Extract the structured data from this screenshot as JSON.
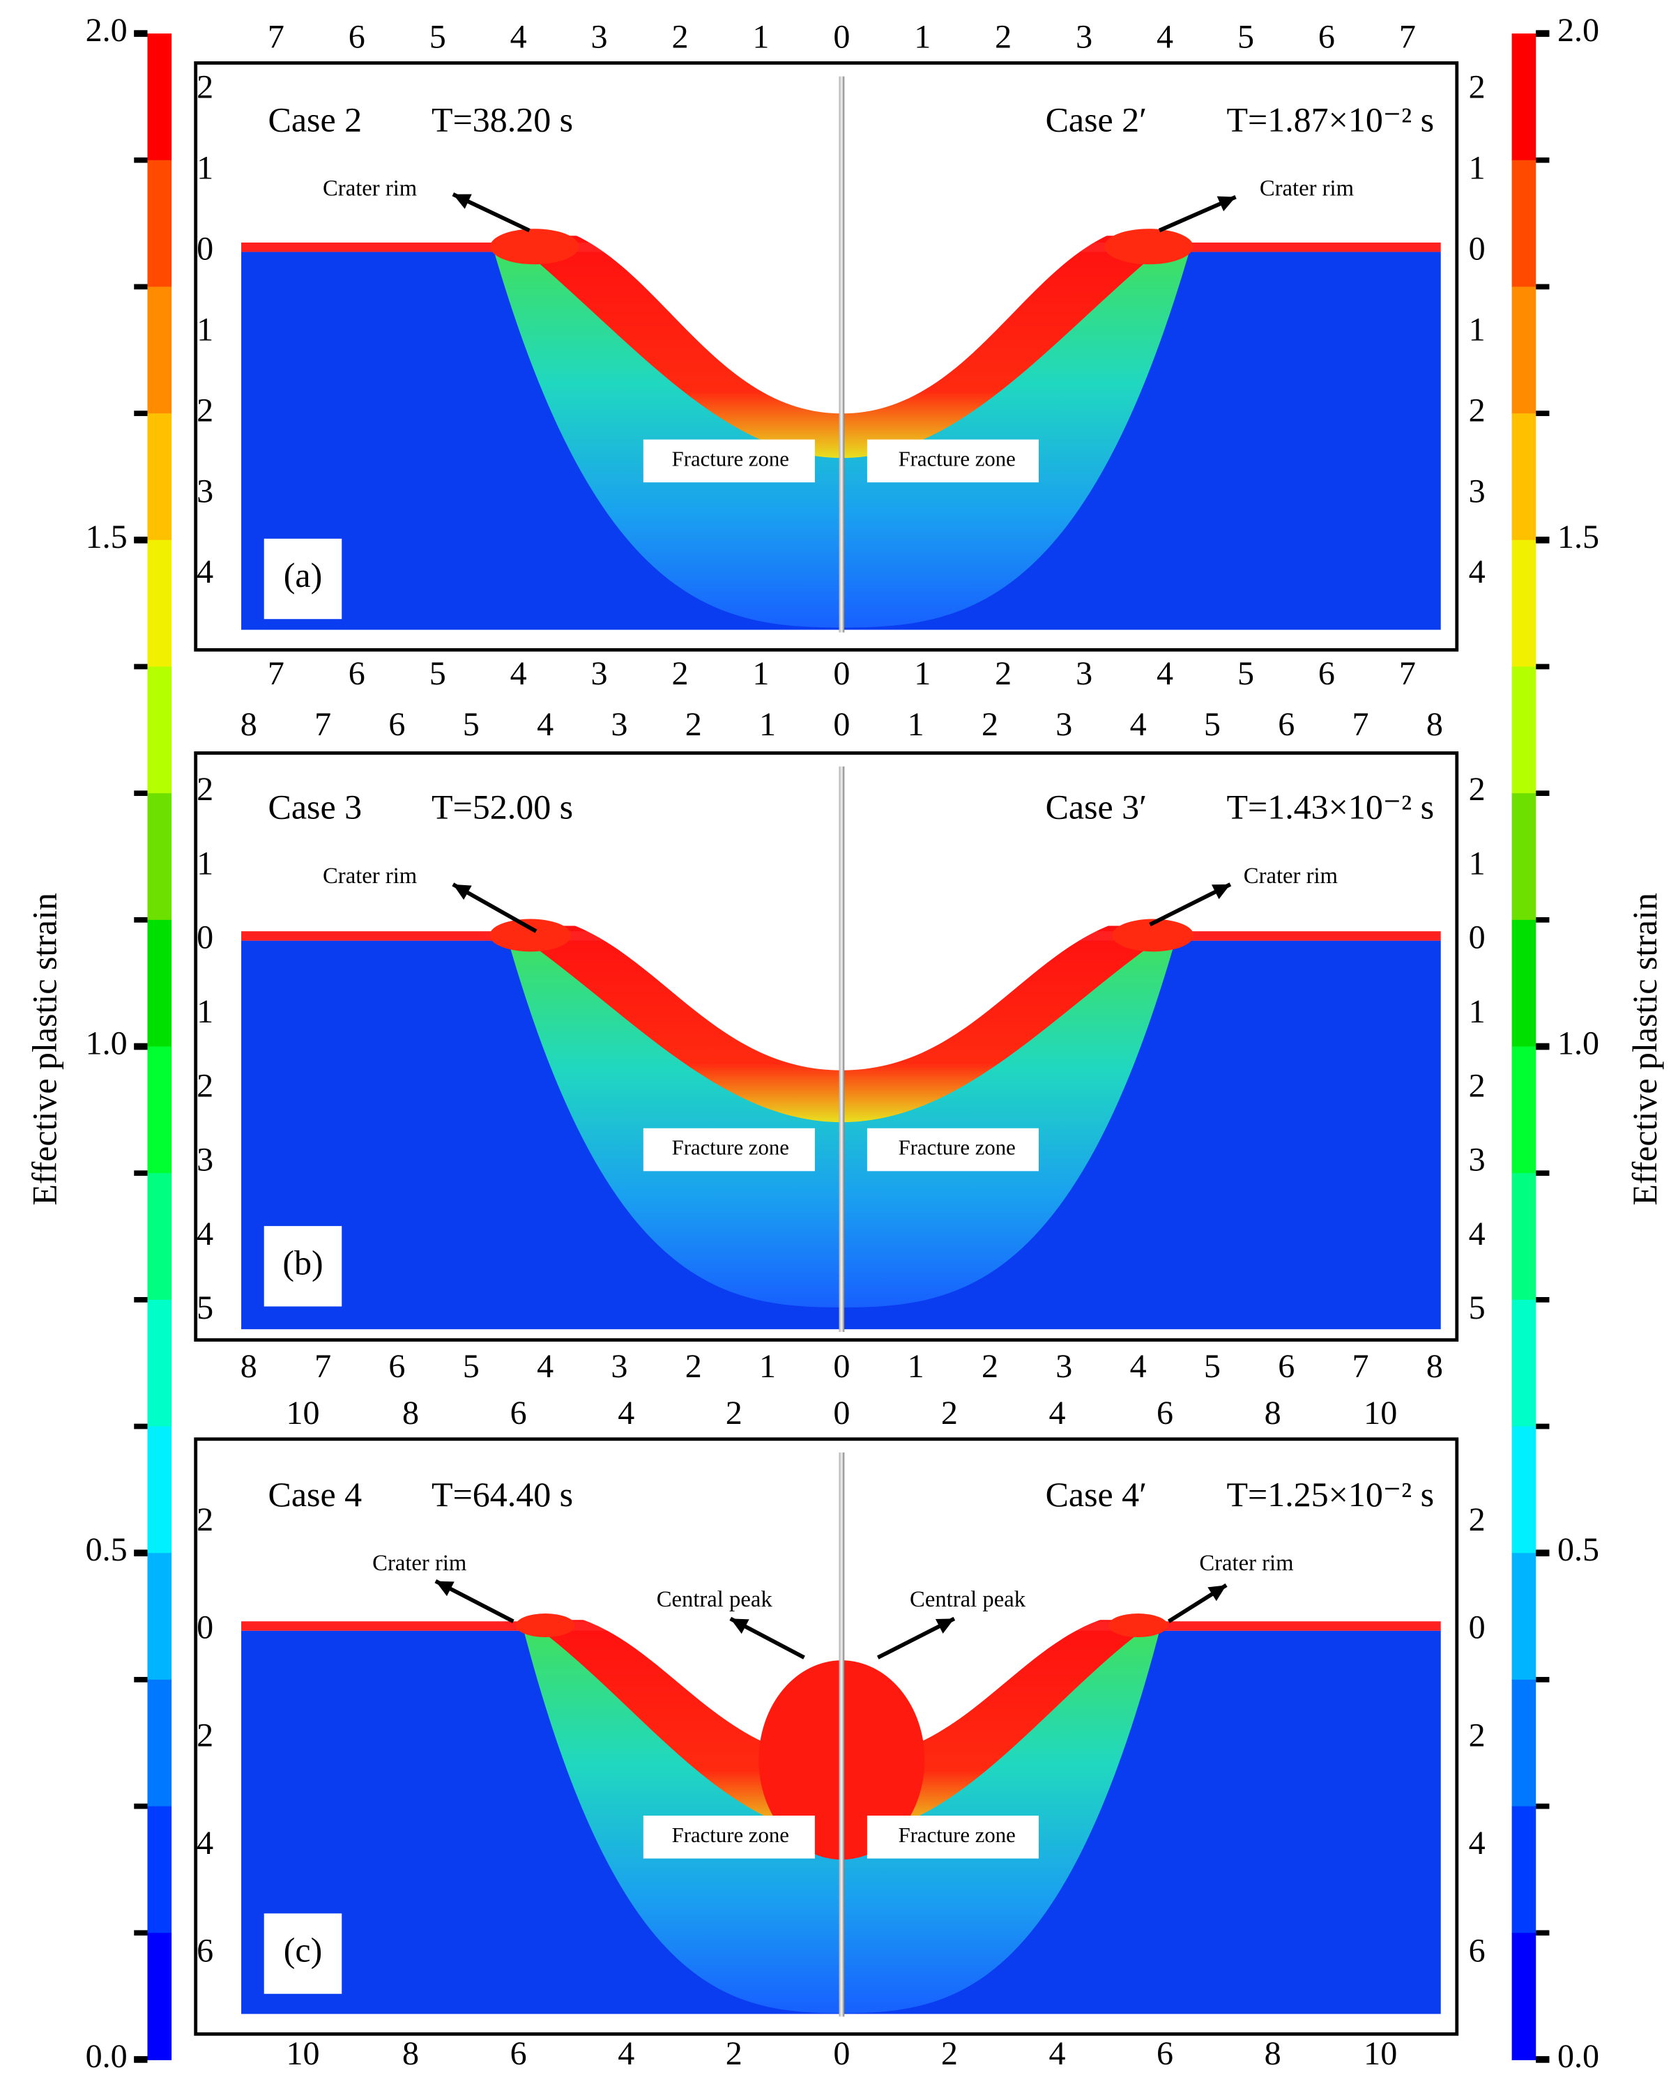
{
  "colorbar": {
    "label": "Effective plastic strain",
    "range": [
      0,
      2
    ],
    "ticks": [
      {
        "value": 2,
        "label": "2.0"
      },
      {
        "value": 1.5,
        "label": "1.5"
      },
      {
        "value": 1,
        "label": "1.0"
      },
      {
        "value": 0.5,
        "label": "0.5"
      },
      {
        "value": 0,
        "label": "0.0"
      }
    ],
    "colors": [
      "#ff0000",
      "#ff4a00",
      "#ff8c00",
      "#ffc000",
      "#f0f000",
      "#b4ff00",
      "#6ee000",
      "#00e000",
      "#00ff30",
      "#00ff80",
      "#00ffc8",
      "#00f0ff",
      "#00b4ff",
      "#0078ff",
      "#003cff",
      "#0000ff"
    ]
  },
  "panels": [
    {
      "tag": "(a)",
      "left_case": "Case 2",
      "left_time": "T=38.20 s",
      "right_case": "Case 2′",
      "right_time": "T=1.87×10⁻² s",
      "rim_label": "Crater rim",
      "zone_label": "Fracture zone",
      "xticks": [
        {
          "value": -7,
          "label": "7"
        },
        {
          "value": -6,
          "label": "6"
        },
        {
          "value": -5,
          "label": "5"
        },
        {
          "value": -4,
          "label": "4"
        },
        {
          "value": -3,
          "label": "3"
        },
        {
          "value": -2,
          "label": "2"
        },
        {
          "value": -1,
          "label": "1"
        },
        0,
        1,
        2,
        3,
        4,
        5,
        6,
        7
      ],
      "yticks": [
        2,
        1,
        0,
        {
          "value": -1,
          "label": "1"
        },
        {
          "value": -2,
          "label": "2"
        },
        {
          "value": -3,
          "label": "3"
        },
        {
          "value": -4,
          "label": "4"
        }
      ]
    },
    {
      "tag": "(b)",
      "left_case": "Case 3",
      "left_time": "T=52.00 s",
      "right_case": "Case 3′",
      "right_time": "T=1.43×10⁻² s",
      "rim_label": "Crater rim",
      "zone_label": "Fracture zone",
      "xticks": [
        {
          "value": -8,
          "label": "8"
        },
        {
          "value": -7,
          "label": "7"
        },
        {
          "value": -6,
          "label": "6"
        },
        {
          "value": -5,
          "label": "5"
        },
        {
          "value": -4,
          "label": "4"
        },
        {
          "value": -3,
          "label": "3"
        },
        {
          "value": -2,
          "label": "2"
        },
        {
          "value": -1,
          "label": "1"
        },
        0,
        1,
        2,
        3,
        4,
        5,
        6,
        7,
        8
      ],
      "yticks": [
        2,
        1,
        0,
        {
          "value": -1,
          "label": "1"
        },
        {
          "value": -2,
          "label": "2"
        },
        {
          "value": -3,
          "label": "3"
        },
        {
          "value": -4,
          "label": "4"
        },
        {
          "value": -5,
          "label": "5"
        }
      ]
    },
    {
      "tag": "(c)",
      "left_case": "Case 4",
      "left_time": "T=64.40 s",
      "right_case": "Case 4′",
      "right_time": "T=1.25×10⁻² s",
      "rim_label": "Crater rim",
      "zone_label": "Fracture zone",
      "peak_label": "Central peak",
      "xticks": [
        {
          "value": -10,
          "label": "10"
        },
        {
          "value": -8,
          "label": "8"
        },
        {
          "value": -6,
          "label": "6"
        },
        {
          "value": -4,
          "label": "4"
        },
        {
          "value": -2,
          "label": "2"
        },
        0,
        2,
        4,
        6,
        8,
        10
      ],
      "yticks": [
        2,
        0,
        {
          "value": -2,
          "label": "2"
        },
        {
          "value": -4,
          "label": "4"
        },
        {
          "value": -6,
          "label": "6"
        }
      ]
    }
  ]
}
